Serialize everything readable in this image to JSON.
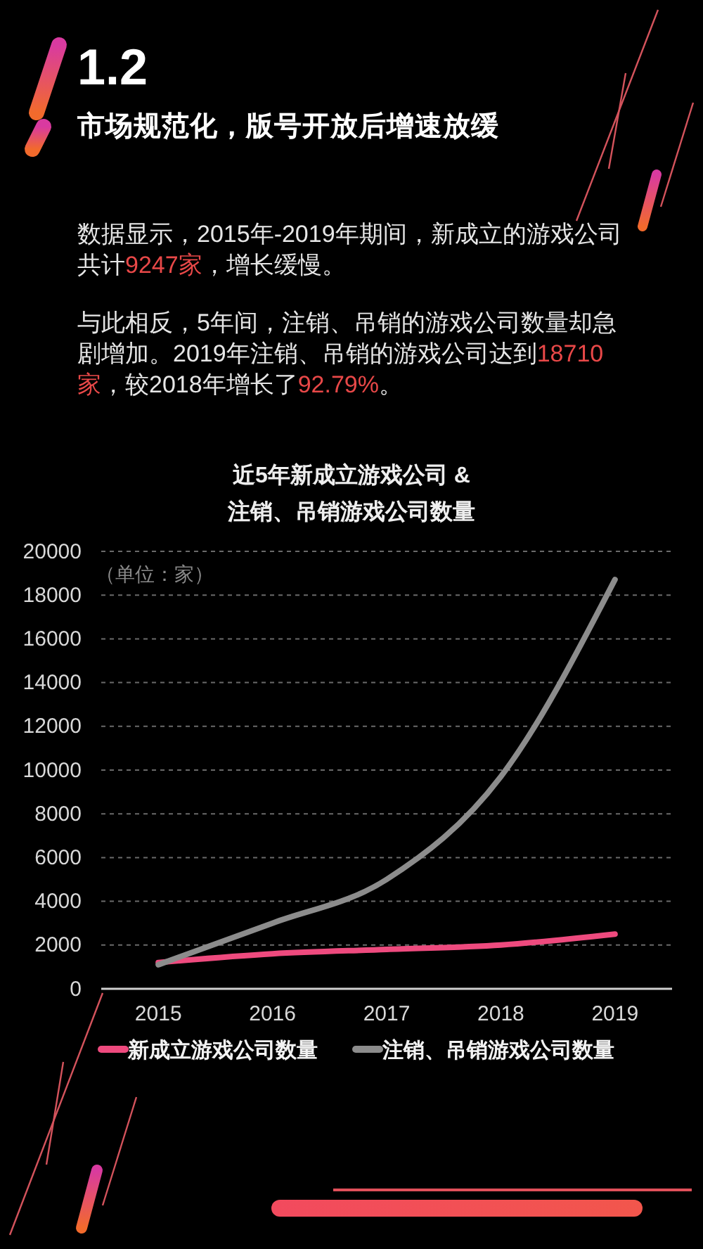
{
  "chart_data": {
    "type": "line",
    "title": "近5年新成立游戏公司 &\n注销、吊销游戏公司数量",
    "ylabel": "（单位：家）",
    "annotations": [
      "1.2",
      "市场规范化，版号开放后增速放缓",
      "数据显示，2015年-2019年期间，新成立的游戏公司共计9247家，增长缓慢。",
      "与此相反，5年间，注销、吊销的游戏公司数量却急剧增加。2019年注销、吊销的游戏公司达到18710家，较2018年增长了92.79%。"
    ],
    "categories": [
      "2015",
      "2016",
      "2017",
      "2018",
      "2019"
    ],
    "series": [
      {
        "name": "新成立游戏公司数量",
        "color": "#ee4a7e",
        "values": [
          1200,
          1600,
          1800,
          2000,
          2500
        ]
      },
      {
        "name": "注销、吊销游戏公司数量",
        "color": "#8c8c8c",
        "values": [
          1100,
          3000,
          5000,
          9700,
          18710
        ]
      }
    ],
    "ylim": [
      0,
      20000
    ],
    "yticks": [
      0,
      2000,
      4000,
      6000,
      8000,
      10000,
      12000,
      14000,
      16000,
      18000,
      20000
    ],
    "grid": "y",
    "legend": "bottom"
  }
}
